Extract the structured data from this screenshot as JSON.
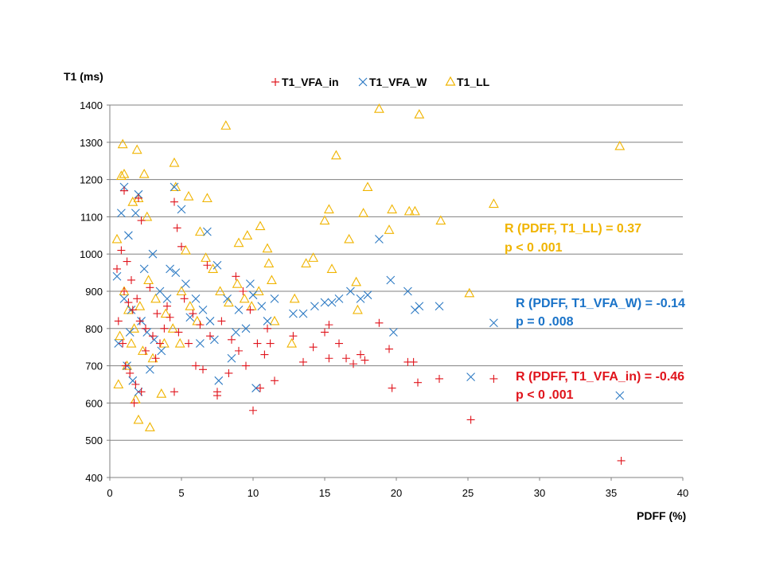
{
  "chart_data": {
    "type": "scatter",
    "title": "",
    "ylabel": "T1 (ms)",
    "xlabel": "PDFF (%)",
    "xlim": [
      0,
      40
    ],
    "ylim": [
      400,
      1400
    ],
    "xticks": [
      "0",
      "5",
      "10",
      "15",
      "20",
      "25",
      "30",
      "35",
      "40"
    ],
    "yticks": [
      "400",
      "500",
      "600",
      "700",
      "800",
      "900",
      "1000",
      "1100",
      "1200",
      "1300",
      "1400"
    ],
    "grid": "horizontal",
    "legend_position": "top",
    "series": [
      {
        "name": "T1_VFA_in",
        "marker": "plus",
        "color": "#e0141c",
        "points": [
          [
            0.5,
            960
          ],
          [
            0.8,
            1010
          ],
          [
            1.0,
            1170
          ],
          [
            1.2,
            980
          ],
          [
            1.5,
            930
          ],
          [
            2.0,
            1150
          ],
          [
            2.2,
            1090
          ],
          [
            1.0,
            900
          ],
          [
            1.3,
            870
          ],
          [
            1.6,
            850
          ],
          [
            2.1,
            820
          ],
          [
            2.5,
            800
          ],
          [
            3.0,
            780
          ],
          [
            3.5,
            760
          ],
          [
            1.1,
            700
          ],
          [
            1.4,
            680
          ],
          [
            1.8,
            650
          ],
          [
            2.2,
            630
          ],
          [
            1.7,
            600
          ],
          [
            2.5,
            740
          ],
          [
            3.2,
            720
          ],
          [
            4.0,
            860
          ],
          [
            4.5,
            1140
          ],
          [
            4.7,
            1070
          ],
          [
            5.0,
            1020
          ],
          [
            4.2,
            830
          ],
          [
            4.8,
            790
          ],
          [
            5.5,
            760
          ],
          [
            6.0,
            700
          ],
          [
            6.5,
            690
          ],
          [
            4.5,
            630
          ],
          [
            6.8,
            970
          ],
          [
            7.5,
            620
          ],
          [
            7.5,
            630
          ],
          [
            8.3,
            680
          ],
          [
            8.8,
            940
          ],
          [
            9.3,
            900
          ],
          [
            9.5,
            700
          ],
          [
            9.8,
            850
          ],
          [
            10.0,
            580
          ],
          [
            10.3,
            760
          ],
          [
            10.5,
            640
          ],
          [
            10.8,
            730
          ],
          [
            11.2,
            760
          ],
          [
            11.5,
            660
          ],
          [
            12.8,
            780
          ],
          [
            13.5,
            710
          ],
          [
            14.2,
            750
          ],
          [
            15.0,
            790
          ],
          [
            15.3,
            810
          ],
          [
            15.3,
            720
          ],
          [
            16.0,
            760
          ],
          [
            16.5,
            720
          ],
          [
            17.0,
            705
          ],
          [
            17.5,
            730
          ],
          [
            17.8,
            715
          ],
          [
            18.8,
            815
          ],
          [
            19.5,
            745
          ],
          [
            19.7,
            640
          ],
          [
            20.8,
            710
          ],
          [
            21.2,
            710
          ],
          [
            21.5,
            655
          ],
          [
            23.0,
            665
          ],
          [
            25.2,
            555
          ],
          [
            26.8,
            665
          ],
          [
            35.7,
            445
          ],
          [
            0.6,
            820
          ],
          [
            0.9,
            760
          ],
          [
            1.9,
            880
          ],
          [
            2.8,
            910
          ],
          [
            3.3,
            840
          ],
          [
            3.8,
            800
          ],
          [
            5.2,
            880
          ],
          [
            5.8,
            840
          ],
          [
            6.3,
            810
          ],
          [
            7.0,
            780
          ],
          [
            7.8,
            820
          ],
          [
            8.5,
            770
          ],
          [
            9.0,
            740
          ],
          [
            11.0,
            800
          ]
        ]
      },
      {
        "name": "T1_VFA_W",
        "marker": "x",
        "color": "#2e7bc4",
        "points": [
          [
            0.5,
            940
          ],
          [
            0.8,
            1110
          ],
          [
            1.0,
            1180
          ],
          [
            1.3,
            1050
          ],
          [
            1.8,
            1110
          ],
          [
            2.0,
            1160
          ],
          [
            1.0,
            880
          ],
          [
            1.5,
            850
          ],
          [
            2.2,
            820
          ],
          [
            2.6,
            790
          ],
          [
            3.1,
            770
          ],
          [
            3.6,
            740
          ],
          [
            1.2,
            700
          ],
          [
            1.6,
            660
          ],
          [
            2.0,
            630
          ],
          [
            2.8,
            690
          ],
          [
            3.5,
            900
          ],
          [
            4.0,
            880
          ],
          [
            4.5,
            1180
          ],
          [
            4.6,
            950
          ],
          [
            5.0,
            1120
          ],
          [
            5.3,
            920
          ],
          [
            6.0,
            880
          ],
          [
            6.5,
            850
          ],
          [
            6.8,
            1060
          ],
          [
            7.0,
            820
          ],
          [
            7.5,
            970
          ],
          [
            7.6,
            660
          ],
          [
            8.2,
            880
          ],
          [
            8.5,
            720
          ],
          [
            9.0,
            850
          ],
          [
            9.5,
            800
          ],
          [
            10.0,
            890
          ],
          [
            10.2,
            640
          ],
          [
            10.6,
            860
          ],
          [
            11.0,
            820
          ],
          [
            11.5,
            880
          ],
          [
            12.8,
            840
          ],
          [
            13.5,
            840
          ],
          [
            14.3,
            860
          ],
          [
            15.0,
            870
          ],
          [
            15.5,
            870
          ],
          [
            16.0,
            880
          ],
          [
            16.8,
            900
          ],
          [
            17.5,
            880
          ],
          [
            18.0,
            890
          ],
          [
            18.8,
            1040
          ],
          [
            19.6,
            930
          ],
          [
            19.8,
            790
          ],
          [
            20.8,
            900
          ],
          [
            21.3,
            850
          ],
          [
            21.6,
            860
          ],
          [
            23.0,
            860
          ],
          [
            25.2,
            670
          ],
          [
            26.8,
            815
          ],
          [
            35.6,
            620
          ],
          [
            0.6,
            760
          ],
          [
            1.4,
            790
          ],
          [
            2.4,
            960
          ],
          [
            3.0,
            1000
          ],
          [
            4.2,
            960
          ],
          [
            5.6,
            830
          ],
          [
            6.3,
            760
          ],
          [
            7.3,
            770
          ],
          [
            8.8,
            790
          ],
          [
            9.8,
            920
          ]
        ]
      },
      {
        "name": "T1_LL",
        "marker": "triangle",
        "color": "#f0b400",
        "points": [
          [
            0.5,
            1040
          ],
          [
            0.8,
            1210
          ],
          [
            0.9,
            1295
          ],
          [
            1.0,
            1215
          ],
          [
            1.6,
            1140
          ],
          [
            1.9,
            1280
          ],
          [
            2.4,
            1215
          ],
          [
            2.0,
            1150
          ],
          [
            2.6,
            1100
          ],
          [
            4.5,
            1245
          ],
          [
            4.6,
            1180
          ],
          [
            5.5,
            1155
          ],
          [
            6.8,
            1150
          ],
          [
            8.1,
            1345
          ],
          [
            9.0,
            1030
          ],
          [
            9.6,
            1050
          ],
          [
            10.5,
            1075
          ],
          [
            11.0,
            1015
          ],
          [
            11.1,
            975
          ],
          [
            11.3,
            930
          ],
          [
            11.5,
            820
          ],
          [
            12.7,
            760
          ],
          [
            12.9,
            880
          ],
          [
            13.7,
            975
          ],
          [
            14.2,
            990
          ],
          [
            15.0,
            1090
          ],
          [
            15.3,
            1120
          ],
          [
            15.5,
            960
          ],
          [
            15.8,
            1265
          ],
          [
            16.7,
            1040
          ],
          [
            17.2,
            925
          ],
          [
            17.3,
            850
          ],
          [
            17.7,
            1110
          ],
          [
            18.0,
            1180
          ],
          [
            18.8,
            1390
          ],
          [
            19.7,
            1120
          ],
          [
            19.5,
            1065
          ],
          [
            20.9,
            1115
          ],
          [
            21.3,
            1115
          ],
          [
            21.6,
            1375
          ],
          [
            23.1,
            1090
          ],
          [
            25.1,
            895
          ],
          [
            26.8,
            1135
          ],
          [
            35.6,
            1290
          ],
          [
            0.6,
            650
          ],
          [
            1.2,
            700
          ],
          [
            1.8,
            610
          ],
          [
            2.0,
            555
          ],
          [
            2.8,
            535
          ],
          [
            3.6,
            625
          ],
          [
            1.0,
            900
          ],
          [
            1.3,
            850
          ],
          [
            1.7,
            800
          ],
          [
            2.1,
            860
          ],
          [
            2.7,
            930
          ],
          [
            3.2,
            880
          ],
          [
            3.9,
            840
          ],
          [
            4.4,
            800
          ],
          [
            5.0,
            900
          ],
          [
            5.6,
            860
          ],
          [
            6.1,
            820
          ],
          [
            6.7,
            990
          ],
          [
            7.2,
            960
          ],
          [
            7.7,
            900
          ],
          [
            8.3,
            870
          ],
          [
            8.9,
            920
          ],
          [
            9.4,
            880
          ],
          [
            9.9,
            860
          ],
          [
            10.4,
            900
          ],
          [
            0.7,
            780
          ],
          [
            1.5,
            760
          ],
          [
            2.3,
            740
          ],
          [
            3.0,
            720
          ],
          [
            3.8,
            760
          ],
          [
            4.9,
            760
          ],
          [
            5.3,
            1010
          ],
          [
            6.3,
            1060
          ]
        ]
      }
    ],
    "annotations": [
      {
        "lines": [
          "R (PDFF, T1_LL) = 0.37",
          "p < 0 .001"
        ],
        "color": "#f0b400"
      },
      {
        "lines": [
          "R (PDFF, T1_VFA_W) = -0.14",
          "p = 0 .008"
        ],
        "color": "#1a73c8"
      },
      {
        "lines": [
          "R (PDFF, T1_VFA_in) = -0.46",
          "p < 0 .001"
        ],
        "color": "#e0141c"
      }
    ]
  }
}
